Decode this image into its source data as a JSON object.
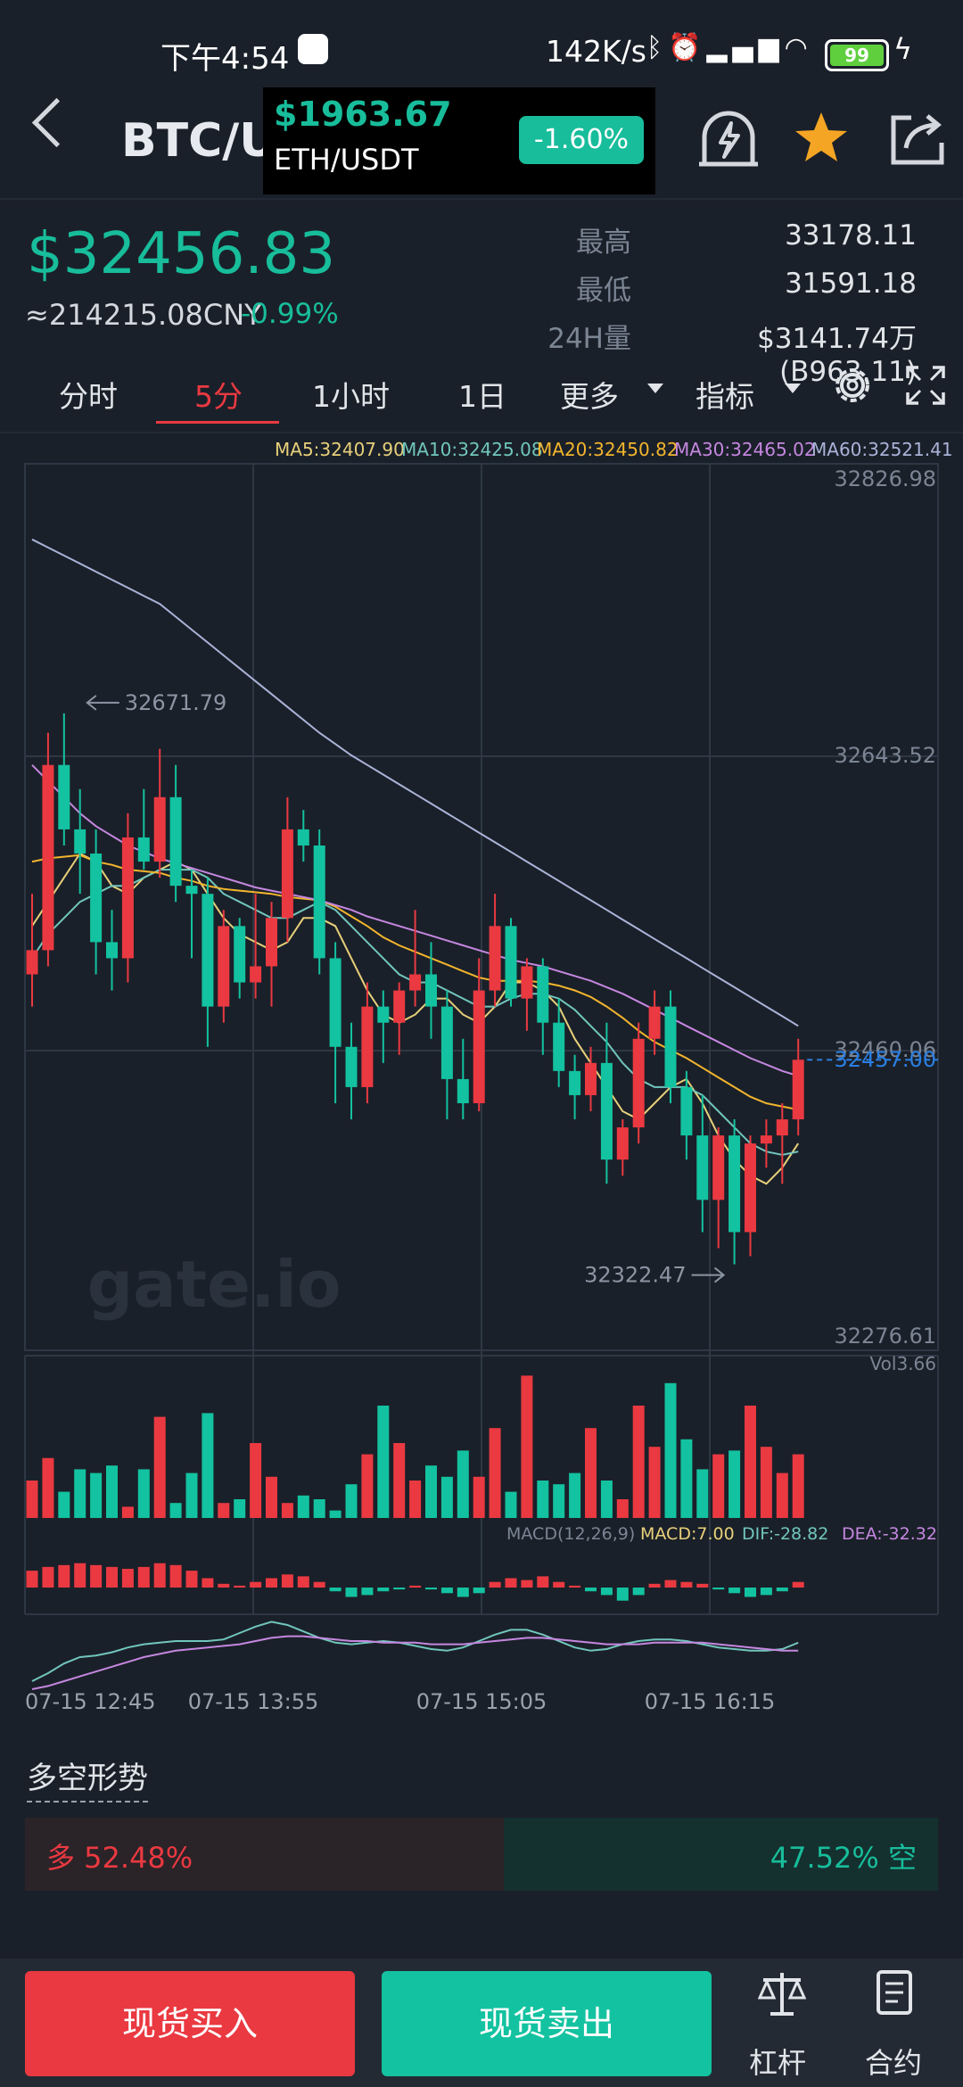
{
  "status": {
    "time": "下午4:54",
    "net": "142K/s",
    "battery": "99"
  },
  "header": {
    "pair": "BTC/USDT",
    "popup": {
      "price": "$1963.67",
      "pair": "ETH/USDT",
      "change": "-1.60%"
    }
  },
  "ticker": {
    "price": "$32456.83",
    "cny": "≈214215.08CNY",
    "change": "-0.99%",
    "stats": [
      {
        "label": "最高",
        "value": "33178.11"
      },
      {
        "label": "最低",
        "value": "31591.18"
      },
      {
        "label": "24H量",
        "value": "$3141.74万(B963.11)"
      }
    ]
  },
  "tabs": [
    "分时",
    "5分",
    "1小时",
    "1日",
    "更多",
    "指标"
  ],
  "active_tab": "5分",
  "ma_legend": [
    {
      "text": "MA5:32407.90",
      "color": "#e8d07a"
    },
    {
      "text": "MA10:32425.08",
      "color": "#71c6bd"
    },
    {
      "text": "MA20:32450.82",
      "color": "#f3b52d"
    },
    {
      "text": "MA30:32465.02",
      "color": "#c587e0"
    },
    {
      "text": "MA60:32521.41",
      "color": "#aab3d8"
    }
  ],
  "chart_data": {
    "type": "candlestick",
    "price_axis": [
      "32826.98",
      "32643.52",
      "32460.06",
      "32276.61"
    ],
    "last_price_label": "32457.00",
    "max_label": "32671.79",
    "min_label": "32322.47",
    "x_labels": [
      "07-15 12:45",
      "07-15 13:55",
      "07-15 15:05",
      "07-15 16:15"
    ],
    "watermark": "gate.io",
    "vol_label": "Vol3.66",
    "macd_labels": [
      {
        "text": "MACD(12,26,9)",
        "color": "#7b8594"
      },
      {
        "text": "MACD:7.00",
        "color": "#e8d07a"
      },
      {
        "text": "DIF:-28.82",
        "color": "#71c6bd"
      },
      {
        "text": "DEA:-32.32",
        "color": "#c587e0"
      }
    ],
    "candles": [
      {
        "o": 32510,
        "h": 32560,
        "l": 32490,
        "c": 32525
      },
      {
        "o": 32525,
        "h": 32660,
        "l": 32515,
        "c": 32640
      },
      {
        "o": 32640,
        "h": 32672,
        "l": 32590,
        "c": 32600
      },
      {
        "o": 32600,
        "h": 32625,
        "l": 32560,
        "c": 32585
      },
      {
        "o": 32585,
        "h": 32600,
        "l": 32510,
        "c": 32530
      },
      {
        "o": 32530,
        "h": 32550,
        "l": 32500,
        "c": 32520
      },
      {
        "o": 32520,
        "h": 32610,
        "l": 32505,
        "c": 32595
      },
      {
        "o": 32595,
        "h": 32625,
        "l": 32575,
        "c": 32580
      },
      {
        "o": 32580,
        "h": 32650,
        "l": 32570,
        "c": 32620
      },
      {
        "o": 32620,
        "h": 32640,
        "l": 32555,
        "c": 32565
      },
      {
        "o": 32565,
        "h": 32575,
        "l": 32520,
        "c": 32560
      },
      {
        "o": 32560,
        "h": 32570,
        "l": 32465,
        "c": 32490
      },
      {
        "o": 32490,
        "h": 32550,
        "l": 32480,
        "c": 32540
      },
      {
        "o": 32540,
        "h": 32545,
        "l": 32495,
        "c": 32505
      },
      {
        "o": 32505,
        "h": 32560,
        "l": 32495,
        "c": 32515
      },
      {
        "o": 32515,
        "h": 32555,
        "l": 32490,
        "c": 32545
      },
      {
        "o": 32545,
        "h": 32620,
        "l": 32530,
        "c": 32600
      },
      {
        "o": 32600,
        "h": 32612,
        "l": 32580,
        "c": 32590
      },
      {
        "o": 32590,
        "h": 32600,
        "l": 32510,
        "c": 32520
      },
      {
        "o": 32520,
        "h": 32530,
        "l": 32430,
        "c": 32465
      },
      {
        "o": 32465,
        "h": 32480,
        "l": 32420,
        "c": 32440
      },
      {
        "o": 32440,
        "h": 32505,
        "l": 32430,
        "c": 32490
      },
      {
        "o": 32490,
        "h": 32500,
        "l": 32455,
        "c": 32480
      },
      {
        "o": 32480,
        "h": 32505,
        "l": 32460,
        "c": 32500
      },
      {
        "o": 32500,
        "h": 32550,
        "l": 32490,
        "c": 32510
      },
      {
        "o": 32510,
        "h": 32530,
        "l": 32470,
        "c": 32490
      },
      {
        "o": 32490,
        "h": 32500,
        "l": 32420,
        "c": 32445
      },
      {
        "o": 32445,
        "h": 32470,
        "l": 32420,
        "c": 32430
      },
      {
        "o": 32430,
        "h": 32520,
        "l": 32425,
        "c": 32500
      },
      {
        "o": 32500,
        "h": 32560,
        "l": 32490,
        "c": 32540
      },
      {
        "o": 32540,
        "h": 32545,
        "l": 32490,
        "c": 32495
      },
      {
        "o": 32495,
        "h": 32520,
        "l": 32475,
        "c": 32515
      },
      {
        "o": 32515,
        "h": 32520,
        "l": 32460,
        "c": 32480
      },
      {
        "o": 32480,
        "h": 32495,
        "l": 32440,
        "c": 32450
      },
      {
        "o": 32450,
        "h": 32460,
        "l": 32420,
        "c": 32435
      },
      {
        "o": 32435,
        "h": 32465,
        "l": 32425,
        "c": 32455
      },
      {
        "o": 32455,
        "h": 32480,
        "l": 32380,
        "c": 32395
      },
      {
        "o": 32395,
        "h": 32420,
        "l": 32385,
        "c": 32415
      },
      {
        "o": 32415,
        "h": 32480,
        "l": 32405,
        "c": 32470
      },
      {
        "o": 32470,
        "h": 32500,
        "l": 32460,
        "c": 32490
      },
      {
        "o": 32490,
        "h": 32500,
        "l": 32430,
        "c": 32440
      },
      {
        "o": 32440,
        "h": 32450,
        "l": 32395,
        "c": 32410
      },
      {
        "o": 32410,
        "h": 32435,
        "l": 32350,
        "c": 32370
      },
      {
        "o": 32370,
        "h": 32415,
        "l": 32340,
        "c": 32410
      },
      {
        "o": 32410,
        "h": 32420,
        "l": 32330,
        "c": 32350
      },
      {
        "o": 32350,
        "h": 32410,
        "l": 32335,
        "c": 32405
      },
      {
        "o": 32405,
        "h": 32420,
        "l": 32390,
        "c": 32410
      },
      {
        "o": 32410,
        "h": 32430,
        "l": 32380,
        "c": 32420
      },
      {
        "o": 32420,
        "h": 32470,
        "l": 32410,
        "c": 32457
      }
    ],
    "ma_series": [
      {
        "name": "MA5",
        "color": "#e8d07a",
        "values": [
          32540,
          32555,
          32570,
          32585,
          32580,
          32565,
          32560,
          32570,
          32575,
          32580,
          32575,
          32560,
          32545,
          32535,
          32530,
          32525,
          32530,
          32545,
          32545,
          32540,
          32520,
          32500,
          32485,
          32480,
          32485,
          32495,
          32495,
          32485,
          32480,
          32490,
          32505,
          32505,
          32500,
          32490,
          32470,
          32455,
          32440,
          32425,
          32420,
          32430,
          32440,
          32445,
          32430,
          32410,
          32395,
          32385,
          32380,
          32390,
          32405
        ]
      },
      {
        "name": "MA10",
        "color": "#71c6bd",
        "values": [
          32520,
          32535,
          32545,
          32555,
          32560,
          32565,
          32565,
          32570,
          32575,
          32575,
          32575,
          32570,
          32560,
          32555,
          32550,
          32545,
          32545,
          32550,
          32555,
          32550,
          32540,
          32530,
          32520,
          32510,
          32505,
          32505,
          32500,
          32495,
          32490,
          32490,
          32495,
          32498,
          32498,
          32495,
          32488,
          32478,
          32468,
          32455,
          32445,
          32440,
          32440,
          32440,
          32435,
          32425,
          32415,
          32405,
          32400,
          32398,
          32400
        ]
      },
      {
        "name": "MA20",
        "color": "#f3b52d",
        "values": [
          32580,
          32582,
          32583,
          32584,
          32580,
          32578,
          32575,
          32574,
          32573,
          32570,
          32568,
          32565,
          32563,
          32562,
          32561,
          32560,
          32558,
          32557,
          32556,
          32552,
          32546,
          32540,
          32533,
          32528,
          32524,
          32520,
          32516,
          32512,
          32508,
          32506,
          32506,
          32506,
          32505,
          32503,
          32500,
          32496,
          32490,
          32483,
          32475,
          32468,
          32463,
          32458,
          32452,
          32446,
          32440,
          32434,
          32430,
          32428,
          32426
        ]
      },
      {
        "name": "MA30",
        "color": "#c587e0",
        "values": [
          32640,
          32630,
          32620,
          32610,
          32602,
          32596,
          32590,
          32586,
          32582,
          32579,
          32576,
          32573,
          32570,
          32567,
          32564,
          32562,
          32560,
          32558,
          32556,
          32553,
          32550,
          32546,
          32543,
          32540,
          32537,
          32534,
          32531,
          32528,
          32525,
          32522,
          32519,
          32517,
          32515,
          32512,
          32509,
          32506,
          32502,
          32498,
          32493,
          32488,
          32483,
          32478,
          32473,
          32468,
          32463,
          32458,
          32454,
          32450,
          32447
        ]
      },
      {
        "name": "MA60",
        "color": "#aab3d8",
        "values": [
          32780,
          32775,
          32770,
          32765,
          32760,
          32755,
          32750,
          32745,
          32740,
          32732,
          32724,
          32716,
          32708,
          32700,
          32692,
          32684,
          32676,
          32668,
          32660,
          32653,
          32646,
          32640,
          32634,
          32628,
          32622,
          32616,
          32610,
          32604,
          32598,
          32592,
          32586,
          32580,
          32574,
          32568,
          32562,
          32556,
          32550,
          32544,
          32538,
          32532,
          32526,
          32520,
          32514,
          32508,
          32502,
          32496,
          32490,
          32484,
          32478
        ]
      }
    ],
    "volumes": [
      1.0,
      1.6,
      0.7,
      1.3,
      1.2,
      1.4,
      0.3,
      1.3,
      2.7,
      0.4,
      1.2,
      2.8,
      0.4,
      0.5,
      2.0,
      1.1,
      0.4,
      0.6,
      0.5,
      0.2,
      0.9,
      1.7,
      3.0,
      2.0,
      1.0,
      1.4,
      1.1,
      1.8,
      1.1,
      2.4,
      0.7,
      3.8,
      1.0,
      0.9,
      1.2,
      2.4,
      1.0,
      0.5,
      3.0,
      1.9,
      3.6,
      2.1,
      1.3,
      1.7,
      1.8,
      3.0,
      1.9,
      1.2,
      1.7
    ],
    "macd_hist": [
      18,
      22,
      24,
      26,
      24,
      22,
      20,
      22,
      26,
      24,
      18,
      10,
      4,
      2,
      6,
      10,
      14,
      12,
      6,
      -4,
      -10,
      -8,
      -4,
      -2,
      2,
      -2,
      -6,
      -10,
      -6,
      6,
      10,
      8,
      12,
      6,
      2,
      -4,
      -8,
      -14,
      -8,
      4,
      8,
      6,
      4,
      -2,
      -6,
      -10,
      -8,
      -4,
      6
    ],
    "dif": [
      -70,
      -60,
      -48,
      -40,
      -38,
      -34,
      -28,
      -24,
      -22,
      -20,
      -20,
      -20,
      -18,
      -10,
      -2,
      4,
      0,
      -8,
      -16,
      -22,
      -24,
      -22,
      -20,
      -22,
      -26,
      -30,
      -32,
      -28,
      -20,
      -12,
      -6,
      -6,
      -12,
      -20,
      -28,
      -32,
      -30,
      -24,
      -20,
      -18,
      -18,
      -20,
      -24,
      -28,
      -30,
      -32,
      -32,
      -30,
      -22
    ],
    "dea": [
      -80,
      -76,
      -70,
      -64,
      -58,
      -52,
      -46,
      -40,
      -36,
      -32,
      -30,
      -28,
      -26,
      -24,
      -20,
      -16,
      -14,
      -14,
      -16,
      -18,
      -20,
      -20,
      -22,
      -22,
      -22,
      -24,
      -24,
      -24,
      -22,
      -20,
      -18,
      -16,
      -16,
      -18,
      -20,
      -22,
      -24,
      -24,
      -24,
      -22,
      -22,
      -22,
      -22,
      -24,
      -26,
      -28,
      -30,
      -32,
      -32
    ]
  },
  "long_short": {
    "title": "多空形势",
    "long": "多 52.48%",
    "short": "47.52% 空",
    "long_ratio": 0.5248
  },
  "bottom_bar": {
    "buy": "现货买入",
    "sell": "现货卖出",
    "leverage": "杠杆",
    "contract": "合约"
  }
}
